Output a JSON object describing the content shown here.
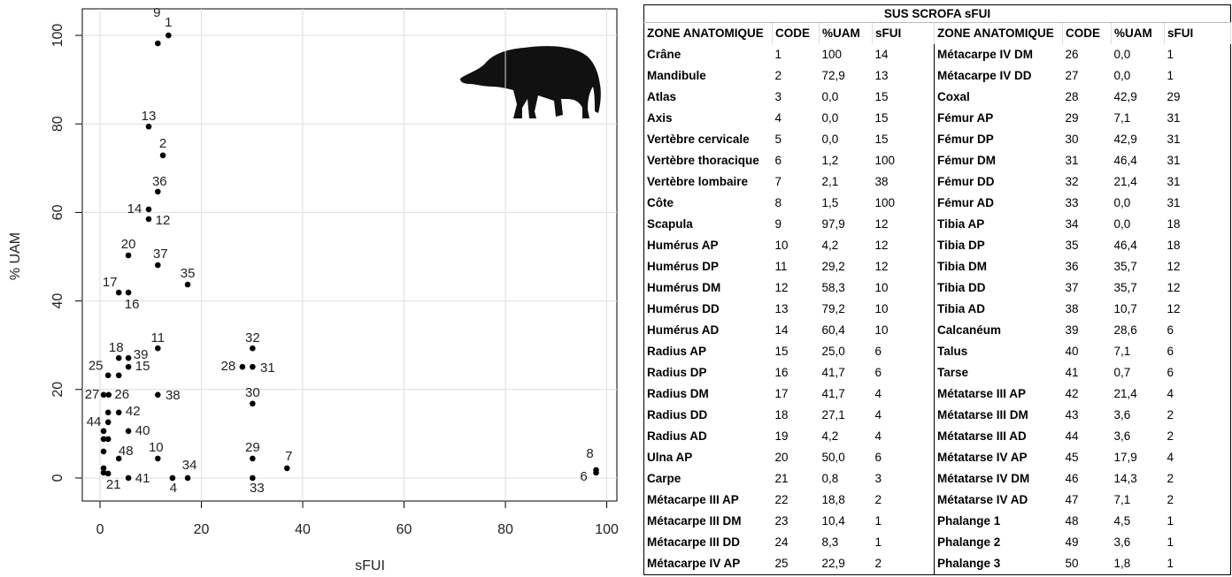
{
  "chart_data": {
    "type": "scatter",
    "x_label": "sFUI",
    "y_label": "% UAM",
    "x": [
      13.5,
      11.4,
      9.6,
      12.4,
      11.4,
      9.6,
      9.6,
      5.6,
      11.4,
      17.3,
      3.7,
      5.6,
      3.7,
      5.6,
      11.4,
      5.6,
      1.6,
      30.1,
      28.1,
      30.1,
      0.7,
      1.7,
      11.4,
      30.1,
      3.7,
      0.7,
      5.6,
      3.7,
      11.4,
      30.1,
      36.9,
      97.9,
      97.9,
      17.3,
      1.6,
      5.6,
      14.3,
      30.1,
      3.7,
      1.6,
      1.6,
      0.7,
      1.6,
      0.7,
      0.7,
      0.7
    ],
    "values": [
      100,
      98.2,
      79.4,
      72.9,
      64.7,
      60.7,
      58.5,
      50.3,
      48.1,
      43.7,
      41.9,
      41.9,
      27.1,
      27.1,
      29.3,
      25.1,
      23.2,
      29.3,
      25.1,
      25.1,
      18.8,
      18.8,
      18.8,
      16.8,
      14.8,
      10.6,
      10.6,
      4.4,
      4.4,
      4.4,
      2.2,
      1.8,
      1.2,
      0,
      1.0,
      0,
      0,
      0,
      23.2,
      14.8,
      12.6,
      8.8,
      8.8,
      6,
      2.2,
      1.2
    ],
    "point_labels": [
      "1",
      "9",
      "13",
      "2",
      "36",
      "14",
      "12",
      "20",
      "37",
      "35",
      "17",
      "16",
      "18",
      "39",
      "11",
      "15",
      "25",
      "32",
      "28",
      "31",
      "27",
      "26",
      "38",
      "30",
      "42",
      "44",
      "40",
      "48",
      "10",
      "29",
      "7",
      "8",
      "6",
      "34",
      "21",
      "41",
      "4",
      "33",
      null,
      null,
      null,
      null,
      null,
      null,
      null,
      null
    ],
    "color": "#000000",
    "xlim": [
      -3.5,
      102
    ],
    "ylim": [
      -5.2,
      106
    ],
    "xticks": [
      0,
      20,
      40,
      60,
      80,
      100
    ],
    "yticks": [
      0,
      20,
      40,
      60,
      80,
      100
    ],
    "grid": true
  },
  "table": {
    "title": "SUS SCROFA sFUI",
    "header": [
      "ZONE ANATOMIQUE",
      "CODE",
      "%UAM",
      "sFUI",
      "ZONE ANATOMIQUE",
      "CODE",
      "%UAM",
      "sFUI"
    ],
    "rows": [
      [
        "Crâne",
        "1",
        "100",
        "14",
        "Métacarpe IV DM",
        "26",
        "0,0",
        "1"
      ],
      [
        "Mandibule",
        "2",
        "72,9",
        "13",
        "Métacarpe IV DD",
        "27",
        "0,0",
        "1"
      ],
      [
        "Atlas",
        "3",
        "0,0",
        "15",
        "Coxal",
        "28",
        "42,9",
        "29"
      ],
      [
        "Axis",
        "4",
        "0,0",
        "15",
        "Fémur AP",
        "29",
        "7,1",
        "31"
      ],
      [
        "Vertèbre cervicale",
        "5",
        "0,0",
        "15",
        "Fémur DP",
        "30",
        "42,9",
        "31"
      ],
      [
        "Vertèbre thoracique",
        "6",
        "1,2",
        "100",
        "Fémur DM",
        "31",
        "46,4",
        "31"
      ],
      [
        "Vertèbre lombaire",
        "7",
        "2,1",
        "38",
        "Fémur DD",
        "32",
        "21,4",
        "31"
      ],
      [
        "Côte",
        "8",
        "1,5",
        "100",
        "Fémur AD",
        "33",
        "0,0",
        "31"
      ],
      [
        "Scapula",
        "9",
        "97,9",
        "12",
        "Tibia AP",
        "34",
        "0,0",
        "18"
      ],
      [
        "Humérus AP",
        "10",
        "4,2",
        "12",
        "Tibia DP",
        "35",
        "46,4",
        "18"
      ],
      [
        "Humérus DP",
        "11",
        "29,2",
        "12",
        "Tibia DM",
        "36",
        "35,7",
        "12"
      ],
      [
        "Humérus DM",
        "12",
        "58,3",
        "10",
        "Tibia DD",
        "37",
        "35,7",
        "12"
      ],
      [
        "Humérus DD",
        "13",
        "79,2",
        "10",
        "Tibia AD",
        "38",
        "10,7",
        "12"
      ],
      [
        "Humérus AD",
        "14",
        "60,4",
        "10",
        "Calcanéum",
        "39",
        "28,6",
        "6"
      ],
      [
        "Radius AP",
        "15",
        "25,0",
        "6",
        "Talus",
        "40",
        "7,1",
        "6"
      ],
      [
        "Radius DP",
        "16",
        "41,7",
        "6",
        "Tarse",
        "41",
        "0,7",
        "6"
      ],
      [
        "Radius DM",
        "17",
        "41,7",
        "4",
        "Métatarse III AP",
        "42",
        "21,4",
        "4"
      ],
      [
        "Radius DD",
        "18",
        "27,1",
        "4",
        "Métatarse III DM",
        "43",
        "3,6",
        "2"
      ],
      [
        "Radius AD",
        "19",
        "4,2",
        "4",
        "Métatarse III AD",
        "44",
        "3,6",
        "2"
      ],
      [
        "Ulna AP",
        "20",
        "50,0",
        "6",
        "Métatarse IV AP",
        "45",
        "17,9",
        "4"
      ],
      [
        "Carpe",
        "21",
        "0,8",
        "3",
        "Métatarse IV DM",
        "46",
        "14,3",
        "2"
      ],
      [
        "Métacarpe III AP",
        "22",
        "18,8",
        "2",
        "Métatarse IV AD",
        "47",
        "7,1",
        "2"
      ],
      [
        "Métacarpe III DM",
        "23",
        "10,4",
        "1",
        "Phalange 1",
        "48",
        "4,5",
        "1"
      ],
      [
        "Métacarpe III DD",
        "24",
        "8,3",
        "1",
        "Phalange 2",
        "49",
        "3,6",
        "1"
      ],
      [
        "Métacarpe IV AP",
        "25",
        "22,9",
        "2",
        "Phalange 3",
        "50",
        "1,8",
        "1"
      ]
    ]
  }
}
